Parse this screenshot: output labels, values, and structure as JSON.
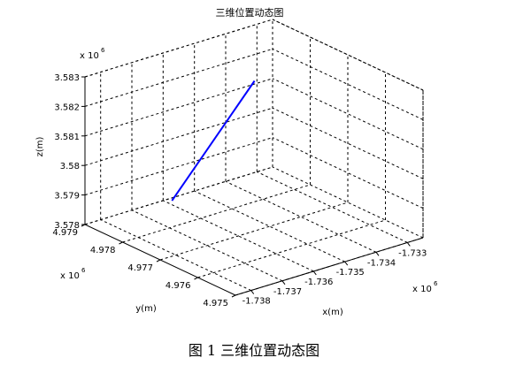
{
  "chart_data": {
    "type": "line",
    "projection": "3d",
    "title": "三维位置动态图",
    "xlabel": "x(m)",
    "ylabel": "y(m)",
    "zlabel": "z(m)",
    "x_multiplier": "x 10^6",
    "y_multiplier": "x 10^6",
    "z_multiplier": "x 10^6",
    "xlim": [
      -1.7385,
      -1.7325
    ],
    "ylim": [
      4.975,
      4.979
    ],
    "zlim": [
      3.578,
      3.583
    ],
    "x_ticks": [
      "-1.738",
      "-1.737",
      "-1.736",
      "-1.735",
      "-1.734",
      "-1.733"
    ],
    "y_ticks": [
      "4.975",
      "4.976",
      "4.977",
      "4.978",
      "4.979"
    ],
    "z_ticks": [
      "3.578",
      "3.579",
      "3.58",
      "3.581",
      "3.582",
      "3.583"
    ],
    "x_tick_values": [
      -1.738,
      -1.737,
      -1.736,
      -1.735,
      -1.734,
      -1.733
    ],
    "y_tick_values": [
      4.975,
      4.976,
      4.977,
      4.978,
      4.979
    ],
    "z_tick_values": [
      3.578,
      3.579,
      3.58,
      3.581,
      3.582,
      3.583
    ],
    "grid": true,
    "box": true,
    "series": [
      {
        "color": "#0000ff",
        "points": [
          {
            "x": -1.7362,
            "y": 4.9786,
            "z": 3.5783
          },
          {
            "x": -1.7338,
            "y": 4.9784,
            "z": 3.5817
          }
        ]
      }
    ]
  },
  "caption": "图 1  三维位置动态图"
}
